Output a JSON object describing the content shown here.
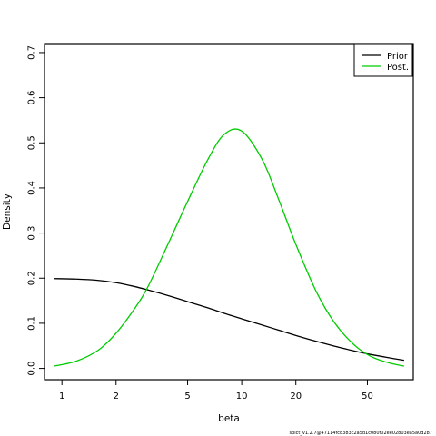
{
  "chart_data": {
    "type": "line",
    "xlabel": "beta",
    "ylabel": "Density",
    "x_scale": "log",
    "xlim": [
      0.8,
      90
    ],
    "ylim": [
      -0.025,
      0.72
    ],
    "x_ticks": [
      {
        "value": 1,
        "label": "1"
      },
      {
        "value": 2,
        "label": "2"
      },
      {
        "value": 5,
        "label": "5"
      },
      {
        "value": 10,
        "label": "10"
      },
      {
        "value": 20,
        "label": "20"
      },
      {
        "value": 50,
        "label": "50"
      }
    ],
    "y_ticks": [
      {
        "value": 0.0,
        "label": "0.0"
      },
      {
        "value": 0.1,
        "label": "0.1"
      },
      {
        "value": 0.2,
        "label": "0.2"
      },
      {
        "value": 0.3,
        "label": "0.3"
      },
      {
        "value": 0.4,
        "label": "0.4"
      },
      {
        "value": 0.5,
        "label": "0.5"
      },
      {
        "value": 0.6,
        "label": "0.6"
      },
      {
        "value": 0.7,
        "label": "0.7"
      }
    ],
    "grid": false,
    "legend_position": "top-right",
    "series": [
      {
        "name": "Prior",
        "color": "#000000",
        "x": [
          0.9,
          1.2,
          1.6,
          2.0,
          2.5,
          3.0,
          4.0,
          5.0,
          6.5,
          8.0,
          10,
          13,
          16,
          20,
          26,
          33,
          42,
          52,
          65,
          80
        ],
        "y": [
          0.199,
          0.198,
          0.195,
          0.19,
          0.182,
          0.174,
          0.16,
          0.148,
          0.134,
          0.122,
          0.11,
          0.096,
          0.085,
          0.073,
          0.06,
          0.049,
          0.039,
          0.031,
          0.024,
          0.018
        ]
      },
      {
        "name": "Post.",
        "color": "#00cc00",
        "x": [
          0.9,
          1.2,
          1.6,
          2.0,
          2.5,
          3.0,
          4.0,
          5.0,
          6.5,
          8.0,
          10,
          13,
          16,
          20,
          26,
          33,
          42,
          52,
          65,
          80
        ],
        "y": [
          0.005,
          0.016,
          0.041,
          0.078,
          0.129,
          0.18,
          0.286,
          0.37,
          0.464,
          0.519,
          0.526,
          0.463,
          0.376,
          0.275,
          0.17,
          0.1,
          0.053,
          0.027,
          0.013,
          0.005
        ]
      }
    ]
  },
  "footnote": "spict_v1.2.7@47114fc8383c2a5d1c080f02ee02803ea5a0d287"
}
